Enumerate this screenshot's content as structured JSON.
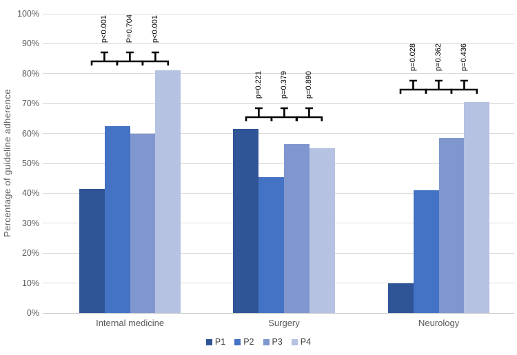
{
  "chart_data": {
    "type": "bar",
    "title": "",
    "xlabel": "",
    "ylabel": "Percentage of guideline adherence",
    "ylim": [
      0,
      100
    ],
    "ytick_step": 10,
    "yticks": [
      "0%",
      "10%",
      "20%",
      "30%",
      "40%",
      "50%",
      "60%",
      "70%",
      "80%",
      "90%",
      "100%"
    ],
    "grid": true,
    "categories": [
      "Internal medicine",
      "Surgery",
      "Neurology"
    ],
    "series": [
      {
        "name": "P1",
        "color": "#2F5597",
        "values": [
          41.5,
          61.5,
          10
        ]
      },
      {
        "name": "P2",
        "color": "#4472C4",
        "values": [
          62.5,
          45.5,
          41
        ]
      },
      {
        "name": "P3",
        "color": "#8096CE",
        "values": [
          60,
          56.5,
          58.5
        ]
      },
      {
        "name": "P4",
        "color": "#B5C2E2",
        "values": [
          81,
          55,
          70.5
        ]
      }
    ],
    "legend": {
      "position": "bottom",
      "entries": [
        "P1",
        "P2",
        "P3",
        "P4"
      ]
    },
    "annotations": [
      {
        "category": "Internal medicine",
        "bracket_y_pct": 84,
        "pairs": [
          [
            "P1",
            "P2"
          ],
          [
            "P2",
            "P3"
          ],
          [
            "P3",
            "P4"
          ]
        ],
        "pvalues": [
          "p<0.001",
          "P=0.704",
          "p<0.001"
        ]
      },
      {
        "category": "Surgery",
        "bracket_y_pct": 65.5,
        "pairs": [
          [
            "P1",
            "P2"
          ],
          [
            "P2",
            "P3"
          ],
          [
            "P3",
            "P4"
          ]
        ],
        "pvalues": [
          "p=0.221",
          "p=0.379",
          "p=0.890"
        ]
      },
      {
        "category": "Neurology",
        "bracket_y_pct": 74.7,
        "pairs": [
          [
            "P1",
            "P2"
          ],
          [
            "P2",
            "P3"
          ],
          [
            "P3",
            "P4"
          ]
        ],
        "pvalues": [
          "p=0.028",
          "p=0.362",
          "p=0.436"
        ]
      }
    ],
    "bracket_color": "#000000",
    "gridline_color": "#dadada",
    "axis_text_color": "#595959"
  }
}
